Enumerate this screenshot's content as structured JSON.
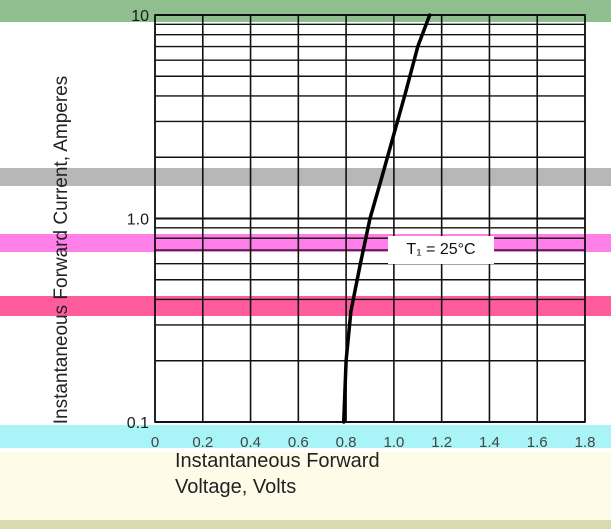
{
  "chart_data": {
    "type": "line",
    "xlabel": "Instantaneous Forward Voltage, Volts",
    "ylabel": "Instantaneous Forward Current, Amperes",
    "x_ticks": [
      "0",
      "0.2",
      "0.4",
      "0.6",
      "0.8",
      "1.0",
      "1.2",
      "1.4",
      "1.6",
      "1.8"
    ],
    "y_ticks": [
      "0.1",
      "1.0",
      "10"
    ],
    "xlim": [
      0,
      1.8
    ],
    "ylim": [
      0.1,
      10
    ],
    "y_scale": "log",
    "grid": true,
    "annotation": "T₁ = 25°C",
    "series": [
      {
        "x": [
          0.79,
          0.8,
          0.82,
          0.86,
          0.9,
          0.95,
          1.0,
          1.05,
          1.1,
          1.15
        ],
        "y": [
          0.1,
          0.2,
          0.35,
          0.6,
          1.0,
          1.6,
          2.6,
          4.2,
          7.0,
          10.0
        ]
      }
    ]
  },
  "decor_colors": {
    "green": "#8fbf8f",
    "gray": "#b7b7b7",
    "magenta": "#ff7fe8",
    "pink": "#ff5c9e",
    "cyan": "#a8f4f7",
    "cream": "#fffbe9",
    "olive": "#d9dab0"
  }
}
